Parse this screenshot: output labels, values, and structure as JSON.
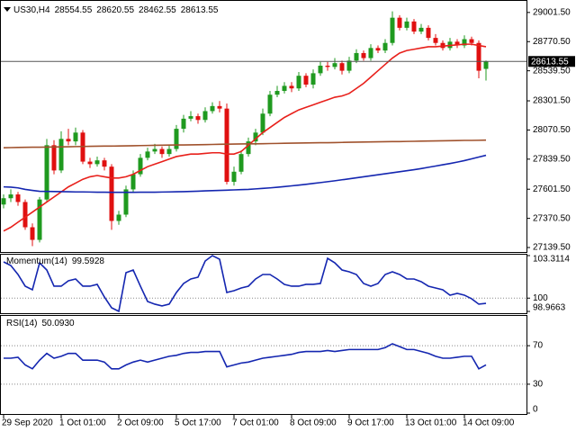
{
  "chart_data": [
    {
      "type": "candlestick",
      "symbol": "US30,H4",
      "categories": [
        "29 Sep 2020",
        null,
        null,
        null,
        null,
        null,
        null,
        null,
        "1 Oct 01:00",
        null,
        null,
        null,
        null,
        null,
        null,
        null,
        "2 Oct 09:00",
        null,
        null,
        null,
        null,
        null,
        null,
        null,
        "5 Oct 17:00",
        null,
        null,
        null,
        null,
        null,
        null,
        null,
        "7 Oct 01:00",
        null,
        null,
        null,
        null,
        null,
        null,
        null,
        "8 Oct 09:00",
        null,
        null,
        null,
        null,
        null,
        null,
        null,
        "9 Oct 17:00",
        null,
        null,
        null,
        null,
        null,
        null,
        null,
        "13 Oct 01:00",
        null,
        null,
        null,
        null,
        null,
        null,
        null,
        "14 Oct 09:00",
        null,
        null,
        null
      ],
      "open": [
        27480,
        27530,
        27560,
        27500,
        27300,
        27200,
        27520,
        27950,
        27750,
        28000,
        27980,
        28050,
        27820,
        27800,
        27830,
        27780,
        27350,
        27400,
        27600,
        27720,
        27850,
        27900,
        27920,
        27880,
        27920,
        28080,
        28160,
        28180,
        28150,
        28220,
        28260,
        28240,
        27660,
        27740,
        27880,
        27980,
        28050,
        28200,
        28350,
        28380,
        28420,
        28400,
        28500,
        28430,
        28520,
        28580,
        28570,
        28600,
        28540,
        28620,
        28680,
        28640,
        28720,
        28700,
        28760,
        28960,
        28880,
        28930,
        28850,
        28880,
        28800,
        28760,
        28720,
        28770,
        28740,
        28790,
        28760,
        28554.55
      ],
      "high": [
        27560,
        27600,
        27580,
        27520,
        27330,
        27540,
        28000,
        27990,
        28060,
        28080,
        28090,
        28070,
        27850,
        27860,
        27850,
        27800,
        27430,
        27630,
        27750,
        27880,
        27930,
        27960,
        27940,
        27950,
        28110,
        28190,
        28220,
        28200,
        28250,
        28290,
        28300,
        28280,
        27780,
        27910,
        28010,
        28080,
        28240,
        28380,
        28420,
        28450,
        28450,
        28530,
        28520,
        28550,
        28610,
        28610,
        28640,
        28620,
        28650,
        28710,
        28700,
        28750,
        28740,
        28790,
        29010,
        28980,
        28960,
        28950,
        28910,
        28900,
        28830,
        28780,
        28800,
        28790,
        28820,
        28810,
        28780,
        28620.55
      ],
      "low": [
        27450,
        27500,
        27470,
        27280,
        27150,
        27180,
        27500,
        27720,
        27730,
        27950,
        27950,
        27800,
        27770,
        27780,
        27750,
        27280,
        27320,
        27380,
        27580,
        27700,
        27830,
        27880,
        27850,
        27860,
        27900,
        28050,
        28140,
        28120,
        28130,
        28200,
        28210,
        27640,
        27630,
        27720,
        27860,
        27950,
        28030,
        28180,
        28330,
        28360,
        28370,
        28380,
        28410,
        28400,
        28500,
        28540,
        28550,
        28510,
        28520,
        28600,
        28620,
        28620,
        28680,
        28680,
        28740,
        28860,
        28860,
        28830,
        28830,
        28780,
        28740,
        28700,
        28700,
        28720,
        28720,
        28740,
        28480,
        28462.55
      ],
      "close": [
        27530,
        27560,
        27500,
        27300,
        27200,
        27520,
        27950,
        27750,
        28000,
        27980,
        28050,
        27820,
        27800,
        27830,
        27780,
        27350,
        27400,
        27600,
        27720,
        27850,
        27900,
        27920,
        27880,
        27920,
        28080,
        28160,
        28180,
        28150,
        28220,
        28260,
        28240,
        27660,
        27740,
        27880,
        27980,
        28050,
        28200,
        28350,
        28380,
        28420,
        28400,
        28500,
        28430,
        28520,
        28580,
        28570,
        28600,
        28540,
        28620,
        28680,
        28640,
        28720,
        28700,
        28760,
        28960,
        28880,
        28930,
        28850,
        28880,
        28800,
        28760,
        28720,
        28770,
        28740,
        28790,
        28760,
        28540,
        28613.55
      ],
      "up_color": "#1f9a1f",
      "down_color": "#e01010",
      "lines": [
        {
          "color": "#e8201b",
          "values": [
            27270,
            27300,
            27340,
            27380,
            27420,
            27460,
            27500,
            27540,
            27580,
            27620,
            27650,
            27680,
            27700,
            27710,
            27700,
            27690,
            27690,
            27700,
            27720,
            27750,
            27780,
            27800,
            27820,
            27840,
            27860,
            27870,
            27880,
            27880,
            27885,
            27890,
            27890,
            27880,
            27880,
            27900,
            27950,
            28000,
            28050,
            28090,
            28130,
            28170,
            28200,
            28230,
            28250,
            28270,
            28290,
            28310,
            28330,
            28340,
            28360,
            28400,
            28440,
            28490,
            28540,
            28590,
            28640,
            28680,
            28700,
            28710,
            28720,
            28730,
            28730,
            28735,
            28740,
            28745,
            28750,
            28750,
            28740,
            28730
          ]
        },
        {
          "color": "#1426b0",
          "values": [
            27620,
            27618,
            27612,
            27600,
            27592,
            27585,
            27584,
            27583,
            27582,
            27581,
            27580,
            27580,
            27579,
            27578,
            27578,
            27577,
            27577,
            27577,
            27577,
            27578,
            27578,
            27578,
            27579,
            27580,
            27581,
            27582,
            27584,
            27586,
            27588,
            27590,
            27592,
            27594,
            27596,
            27598,
            27600,
            27604,
            27608,
            27612,
            27617,
            27622,
            27628,
            27634,
            27640,
            27647,
            27654,
            27661,
            27668,
            27676,
            27684,
            27692,
            27700,
            27708,
            27716,
            27724,
            27732,
            27740,
            27748,
            27756,
            27765,
            27775,
            27785,
            27795,
            27805,
            27816,
            27828,
            27842,
            27856,
            27870
          ]
        },
        {
          "color": "#a0522d",
          "values": [
            27930,
            27931,
            27932,
            27933,
            27934,
            27934,
            27935,
            27936,
            27937,
            27938,
            27939,
            27940,
            27941,
            27942,
            27943,
            27943,
            27944,
            27945,
            27946,
            27947,
            27948,
            27949,
            27950,
            27951,
            27952,
            27952,
            27953,
            27954,
            27955,
            27956,
            27957,
            27958,
            27959,
            27960,
            27961,
            27961,
            27962,
            27963,
            27964,
            27965,
            27966,
            27967,
            27968,
            27969,
            27970,
            27970,
            27971,
            27972,
            27973,
            27974,
            27975,
            27976,
            27977,
            27978,
            27979,
            27979,
            27980,
            27981,
            27982,
            27983,
            27984,
            27985,
            27986,
            27987,
            27988,
            27988,
            27989,
            27990
          ]
        }
      ],
      "ylim": [
        27104,
        29086
      ],
      "yticks": [
        {
          "value": 29001.5,
          "label": "29001.50"
        },
        {
          "value": 28770.5,
          "label": "28770.50"
        },
        {
          "value": 28539.5,
          "label": "28539.50"
        },
        {
          "value": 28301.5,
          "label": "28301.50"
        },
        {
          "value": 28070.5,
          "label": "28070.50"
        },
        {
          "value": 27839.5,
          "label": "27839.50"
        },
        {
          "value": 27601.5,
          "label": "27601.50"
        },
        {
          "value": 27370.5,
          "label": "27370.50"
        },
        {
          "value": 27139.5,
          "label": "27139.50"
        }
      ],
      "grid": false
    },
    {
      "type": "line",
      "title": "Momentum(14)",
      "color": "#1426b0",
      "values": [
        102.82,
        102.54,
        101.84,
        100.93,
        100.65,
        102.75,
        102.19,
        100.93,
        100.93,
        101.35,
        101.49,
        100.93,
        100.93,
        101.07,
        100.09,
        99.25,
        98.97,
        101.98,
        102.19,
        100.93,
        99.74,
        99.53,
        99.39,
        99.53,
        100.44,
        101.14,
        101.49,
        101.63,
        102.89,
        103.31,
        103.03,
        100.44,
        100.58,
        100.79,
        100.93,
        101.49,
        101.84,
        101.84,
        101.49,
        101.07,
        100.93,
        100.93,
        101.07,
        101.07,
        101.14,
        103.1,
        102.75,
        102.19,
        102.05,
        101.84,
        101.14,
        100.93,
        101.14,
        101.84,
        102.05,
        101.84,
        101.49,
        101.49,
        101.28,
        100.93,
        100.79,
        100.65,
        100.23,
        100.37,
        100.23,
        99.95,
        99.53,
        99.5928
      ],
      "ylim": [
        98.9663,
        103.3114
      ],
      "yticks": [
        98.9663,
        100,
        103.3114
      ],
      "grid": true
    },
    {
      "type": "line",
      "title": "RSI(14)",
      "color": "#1426b0",
      "values": [
        57,
        57,
        58,
        50,
        46,
        55,
        62,
        57,
        59,
        62,
        62,
        55,
        55,
        55,
        53,
        46,
        46,
        50,
        53,
        55,
        53,
        55,
        57,
        59,
        60,
        62,
        63,
        63,
        64,
        64,
        64,
        48,
        50,
        52,
        53,
        55,
        57,
        58,
        59,
        60,
        61,
        63,
        64,
        64,
        64,
        65,
        64,
        65,
        66,
        66,
        66,
        66,
        66,
        68,
        72,
        69,
        66,
        66,
        64,
        62,
        59,
        57,
        57,
        58,
        59,
        59,
        46,
        50.093
      ],
      "value_labels": [
        null,
        null,
        null,
        null,
        null,
        null,
        null,
        null,
        null,
        null,
        null,
        null,
        null,
        null,
        null,
        null,
        null,
        null,
        null,
        null,
        null,
        null,
        null,
        null,
        null,
        null,
        null,
        null,
        null,
        null,
        null,
        null,
        null,
        null,
        null,
        null,
        null,
        null,
        null,
        null,
        null,
        null,
        null,
        null,
        null,
        null,
        null,
        null,
        null,
        null,
        null,
        null,
        null,
        null,
        null,
        null,
        null,
        null,
        null,
        null,
        null,
        null,
        null,
        null,
        null,
        null,
        null,
        "50.0930"
      ],
      "ylim": [
        0,
        100
      ],
      "yticks": [
        0,
        30,
        70
      ],
      "grid": true
    }
  ]
}
